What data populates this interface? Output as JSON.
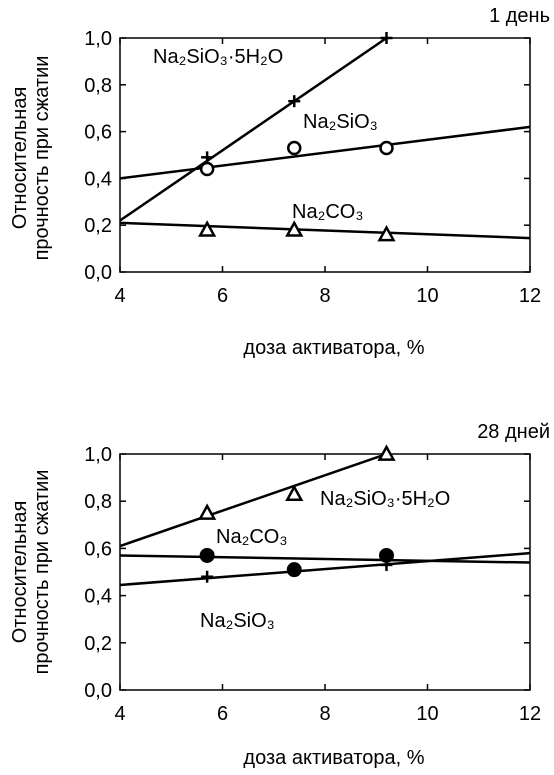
{
  "chart_data": [
    {
      "type": "scatter",
      "title": "1 день",
      "xlabel": "доза активатора, %",
      "ylabel": "Относительная прочность при сжатии",
      "xlim": [
        4,
        12
      ],
      "ylim": [
        0,
        1.0
      ],
      "xticks": [
        "4",
        "6",
        "8",
        "10",
        "12"
      ],
      "yticks": [
        "0,0",
        "0,2",
        "0,4",
        "0,6",
        "0,8",
        "1,0"
      ],
      "grid": false,
      "series": [
        {
          "name": "Na₂SiO₃·5H₂O",
          "marker": "plus",
          "x": [
            5.7,
            7.4,
            9.2
          ],
          "y": [
            0.49,
            0.73,
            1.0
          ],
          "trend": {
            "x": [
              4.0,
              9.2
            ],
            "y": [
              0.22,
              1.0
            ]
          }
        },
        {
          "name": "Na₂SiO₃",
          "marker": "open-circle",
          "x": [
            5.7,
            7.4,
            9.2
          ],
          "y": [
            0.44,
            0.53,
            0.53
          ],
          "trend": {
            "x": [
              4.0,
              12.0
            ],
            "y": [
              0.4,
              0.62
            ]
          }
        },
        {
          "name": "Na₂CO₃",
          "marker": "open-triangle",
          "x": [
            5.7,
            7.4,
            9.2
          ],
          "y": [
            0.18,
            0.18,
            0.16
          ],
          "trend": {
            "x": [
              4.0,
              12.0
            ],
            "y": [
              0.21,
              0.145
            ]
          }
        }
      ]
    },
    {
      "type": "scatter",
      "title": "28 дней",
      "xlabel": "доза активатора, %",
      "ylabel": "Относительная прочность при сжатии",
      "xlim": [
        4,
        12
      ],
      "ylim": [
        0,
        1.0
      ],
      "xticks": [
        "4",
        "6",
        "8",
        "10",
        "12"
      ],
      "yticks": [
        "0,0",
        "0,2",
        "0,4",
        "0,6",
        "0,8",
        "1,0"
      ],
      "grid": false,
      "series": [
        {
          "name": "Na₂SiO₃·5H₂O",
          "marker": "open-triangle",
          "x": [
            5.7,
            7.4,
            9.2
          ],
          "y": [
            0.75,
            0.83,
            1.0
          ],
          "trend": {
            "x": [
              4.0,
              9.2
            ],
            "y": [
              0.61,
              1.0
            ]
          }
        },
        {
          "name": "Na₂CO₃",
          "marker": "filled-circle",
          "x": [
            5.7,
            7.4,
            9.2
          ],
          "y": [
            0.57,
            0.51,
            0.57
          ],
          "trend": {
            "x": [
              4.0,
              12.0
            ],
            "y": [
              0.57,
              0.54
            ]
          }
        },
        {
          "name": "Na₂SiO₃",
          "marker": "plus",
          "x": [
            5.7,
            7.4,
            9.2
          ],
          "y": [
            0.48,
            0.51,
            0.53
          ],
          "trend": {
            "x": [
              4.0,
              12.0
            ],
            "y": [
              0.445,
              0.58
            ]
          }
        }
      ]
    }
  ]
}
